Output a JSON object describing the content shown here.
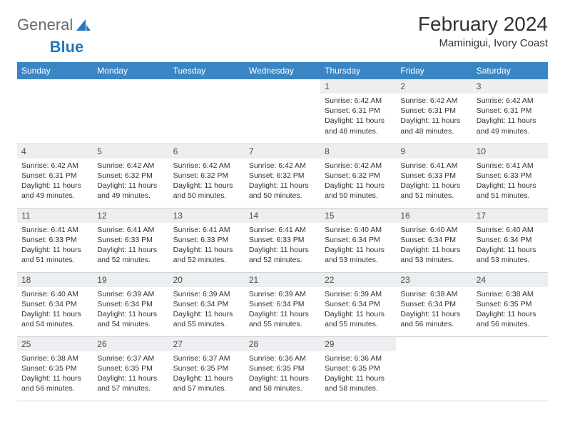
{
  "brand": {
    "part1": "General",
    "part2": "Blue",
    "icon_color": "#2a77b8"
  },
  "title": "February 2024",
  "location": "Maminigui, Ivory Coast",
  "layout": {
    "header_bg": "#3a86c4",
    "header_fg": "#ffffff",
    "daynum_bg": "#eceeef",
    "border_color": "#cfd4d9",
    "body_font_size": 10.5,
    "header_font_size": 12,
    "title_font_size": 28
  },
  "weekdays": [
    "Sunday",
    "Monday",
    "Tuesday",
    "Wednesday",
    "Thursday",
    "Friday",
    "Saturday"
  ],
  "weeks": [
    [
      null,
      null,
      null,
      null,
      {
        "n": "1",
        "sr": "6:42 AM",
        "ss": "6:31 PM",
        "dl": "11 hours and 48 minutes."
      },
      {
        "n": "2",
        "sr": "6:42 AM",
        "ss": "6:31 PM",
        "dl": "11 hours and 48 minutes."
      },
      {
        "n": "3",
        "sr": "6:42 AM",
        "ss": "6:31 PM",
        "dl": "11 hours and 49 minutes."
      }
    ],
    [
      {
        "n": "4",
        "sr": "6:42 AM",
        "ss": "6:31 PM",
        "dl": "11 hours and 49 minutes."
      },
      {
        "n": "5",
        "sr": "6:42 AM",
        "ss": "6:32 PM",
        "dl": "11 hours and 49 minutes."
      },
      {
        "n": "6",
        "sr": "6:42 AM",
        "ss": "6:32 PM",
        "dl": "11 hours and 50 minutes."
      },
      {
        "n": "7",
        "sr": "6:42 AM",
        "ss": "6:32 PM",
        "dl": "11 hours and 50 minutes."
      },
      {
        "n": "8",
        "sr": "6:42 AM",
        "ss": "6:32 PM",
        "dl": "11 hours and 50 minutes."
      },
      {
        "n": "9",
        "sr": "6:41 AM",
        "ss": "6:33 PM",
        "dl": "11 hours and 51 minutes."
      },
      {
        "n": "10",
        "sr": "6:41 AM",
        "ss": "6:33 PM",
        "dl": "11 hours and 51 minutes."
      }
    ],
    [
      {
        "n": "11",
        "sr": "6:41 AM",
        "ss": "6:33 PM",
        "dl": "11 hours and 51 minutes."
      },
      {
        "n": "12",
        "sr": "6:41 AM",
        "ss": "6:33 PM",
        "dl": "11 hours and 52 minutes."
      },
      {
        "n": "13",
        "sr": "6:41 AM",
        "ss": "6:33 PM",
        "dl": "11 hours and 52 minutes."
      },
      {
        "n": "14",
        "sr": "6:41 AM",
        "ss": "6:33 PM",
        "dl": "11 hours and 52 minutes."
      },
      {
        "n": "15",
        "sr": "6:40 AM",
        "ss": "6:34 PM",
        "dl": "11 hours and 53 minutes."
      },
      {
        "n": "16",
        "sr": "6:40 AM",
        "ss": "6:34 PM",
        "dl": "11 hours and 53 minutes."
      },
      {
        "n": "17",
        "sr": "6:40 AM",
        "ss": "6:34 PM",
        "dl": "11 hours and 53 minutes."
      }
    ],
    [
      {
        "n": "18",
        "sr": "6:40 AM",
        "ss": "6:34 PM",
        "dl": "11 hours and 54 minutes."
      },
      {
        "n": "19",
        "sr": "6:39 AM",
        "ss": "6:34 PM",
        "dl": "11 hours and 54 minutes."
      },
      {
        "n": "20",
        "sr": "6:39 AM",
        "ss": "6:34 PM",
        "dl": "11 hours and 55 minutes."
      },
      {
        "n": "21",
        "sr": "6:39 AM",
        "ss": "6:34 PM",
        "dl": "11 hours and 55 minutes."
      },
      {
        "n": "22",
        "sr": "6:39 AM",
        "ss": "6:34 PM",
        "dl": "11 hours and 55 minutes."
      },
      {
        "n": "23",
        "sr": "6:38 AM",
        "ss": "6:34 PM",
        "dl": "11 hours and 56 minutes."
      },
      {
        "n": "24",
        "sr": "6:38 AM",
        "ss": "6:35 PM",
        "dl": "11 hours and 56 minutes."
      }
    ],
    [
      {
        "n": "25",
        "sr": "6:38 AM",
        "ss": "6:35 PM",
        "dl": "11 hours and 56 minutes."
      },
      {
        "n": "26",
        "sr": "6:37 AM",
        "ss": "6:35 PM",
        "dl": "11 hours and 57 minutes."
      },
      {
        "n": "27",
        "sr": "6:37 AM",
        "ss": "6:35 PM",
        "dl": "11 hours and 57 minutes."
      },
      {
        "n": "28",
        "sr": "6:36 AM",
        "ss": "6:35 PM",
        "dl": "11 hours and 58 minutes."
      },
      {
        "n": "29",
        "sr": "6:36 AM",
        "ss": "6:35 PM",
        "dl": "11 hours and 58 minutes."
      },
      null,
      null
    ]
  ],
  "labels": {
    "sunrise": "Sunrise: ",
    "sunset": "Sunset: ",
    "daylight": "Daylight: "
  }
}
